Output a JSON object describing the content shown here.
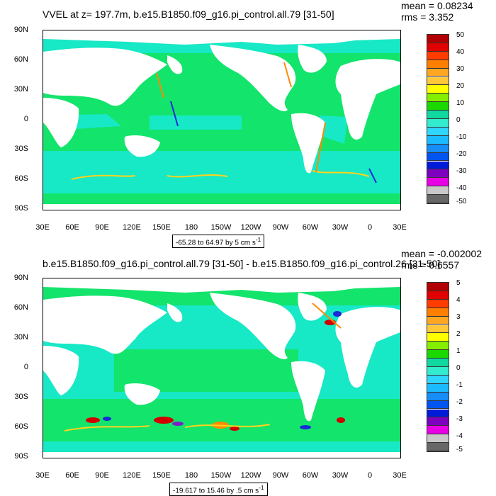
{
  "colors": {
    "land": "#ffffff",
    "ocean_main": "#13e46b",
    "ocean_alt": "#17e8c5",
    "ocean_low": "#8cf0ff",
    "warm1": "#ffd21f",
    "warm2": "#ff8a00",
    "hot": "#d10000",
    "cold1": "#1c9cff",
    "cold2": "#1a2ad8",
    "purple": "#7a21c6"
  },
  "colorbar_colors": [
    "#b20000",
    "#e00000",
    "#ff3c00",
    "#ff7f00",
    "#ffa623",
    "#ffc838",
    "#ffff00",
    "#85ef00",
    "#1bd900",
    "#10d9a0",
    "#31eccd",
    "#2fd6ff",
    "#1bbbff",
    "#168df7",
    "#0055f0",
    "#001cd7",
    "#7c00bd",
    "#e800e6",
    "#c8c8c8",
    "#676767"
  ],
  "panels": [
    {
      "id": "top",
      "title": "VVEL at z= 197.7m, b.e15.B1850.f09_g16.pi_control.all.79 [31-50]",
      "mean": "mean = 0.08234",
      "rms": "rms = 3.352",
      "range": "-65.28 to 64.97 by 5 cm s",
      "range_sup": "-1",
      "colorbar_labels": [
        "50",
        "40",
        "30",
        "20",
        "10",
        "0",
        "-10",
        "-20",
        "-30",
        "-40",
        "-50"
      ]
    },
    {
      "id": "bottom",
      "title": "b.e15.B1850.f09_g16.pi_control.all.79 [31-50] - b.e15.B1850.f09_g16.pi_control.26 [31-50]",
      "mean": "mean = -0.002002",
      "rms": "rms = 0.6557",
      "range": "-19.617 to 15.46 by .5 cm s",
      "range_sup": "-1",
      "colorbar_labels": [
        "5",
        "4",
        "3",
        "2",
        "1",
        "0",
        "-1",
        "-2",
        "-3",
        "-4",
        "-5"
      ]
    }
  ],
  "y_ticks": [
    "90N",
    "60N",
    "30N",
    "0",
    "30S",
    "60S",
    "90S"
  ],
  "x_ticks": [
    "30E",
    "60E",
    "90E",
    "120E",
    "150E",
    "180",
    "150W",
    "120W",
    "90W",
    "60W",
    "30W",
    "0",
    "30E"
  ]
}
